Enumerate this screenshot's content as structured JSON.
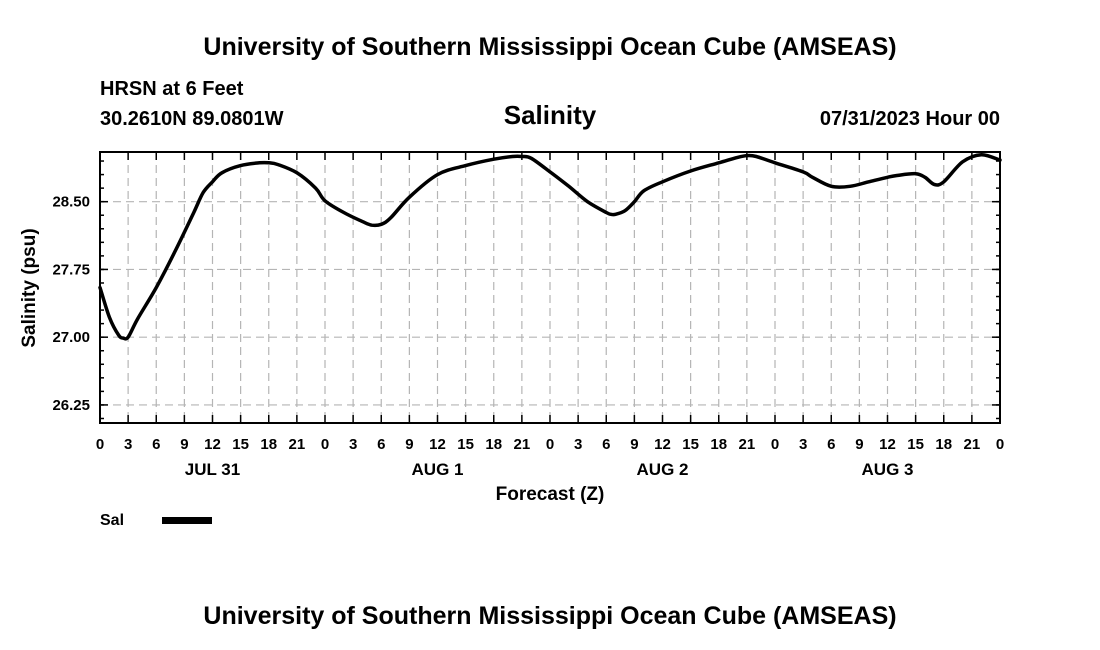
{
  "header": {
    "title": "University of Southern Mississippi Ocean Cube (AMSEAS)",
    "station": "HRSN at 6 Feet",
    "coords": "30.2610N  89.0801W",
    "valid_time": "07/31/2023 Hour 00"
  },
  "footer": {
    "title": "University of Southern Mississippi Ocean Cube (AMSEAS)"
  },
  "legend": {
    "label": "Sal",
    "color": "#000000"
  },
  "chart_data": {
    "type": "line",
    "title": "Salinity",
    "xlabel": "Forecast (Z)",
    "ylabel": "Salinity (psu)",
    "xlim": [
      0,
      96
    ],
    "ylim": [
      26.05,
      29.05
    ],
    "grid": true,
    "yticks": [
      26.25,
      27.0,
      27.75,
      28.5
    ],
    "ytick_labels": [
      "26.25",
      "27.00",
      "27.75",
      "28.50"
    ],
    "xticks": [
      0,
      3,
      6,
      9,
      12,
      15,
      18,
      21,
      24,
      27,
      30,
      33,
      36,
      39,
      42,
      45,
      48,
      51,
      54,
      57,
      60,
      63,
      66,
      69,
      72,
      75,
      78,
      81,
      84,
      87,
      90,
      93,
      96
    ],
    "xtick_labels": [
      "0",
      "3",
      "6",
      "9",
      "12",
      "15",
      "18",
      "21",
      "0",
      "3",
      "6",
      "9",
      "12",
      "15",
      "18",
      "21",
      "0",
      "3",
      "6",
      "9",
      "12",
      "15",
      "18",
      "21",
      "0",
      "3",
      "6",
      "9",
      "12",
      "15",
      "18",
      "21",
      "0"
    ],
    "day_labels": [
      {
        "x": 12,
        "label": "JUL 31"
      },
      {
        "x": 36,
        "label": "AUG 1"
      },
      {
        "x": 60,
        "label": "AUG 2"
      },
      {
        "x": 84,
        "label": "AUG 3"
      }
    ],
    "series": [
      {
        "name": "Sal",
        "x": [
          0,
          1,
          2,
          2.5,
          3,
          4,
          6,
          8,
          10,
          11,
          12,
          13,
          15,
          17,
          18,
          19,
          21,
          23,
          24,
          26,
          28,
          29,
          30,
          31,
          33,
          36,
          39,
          42,
          44,
          45,
          46,
          48,
          50,
          52,
          54,
          54.5,
          55,
          56,
          57,
          58,
          60,
          63,
          66,
          68,
          69,
          70,
          72,
          75,
          76,
          78,
          80,
          82,
          84,
          85,
          87,
          88,
          89,
          90,
          92,
          94,
          96
        ],
        "y": [
          27.55,
          27.22,
          27.02,
          26.99,
          27.0,
          27.2,
          27.55,
          27.95,
          28.38,
          28.6,
          28.72,
          28.82,
          28.9,
          28.93,
          28.93,
          28.91,
          28.82,
          28.65,
          28.51,
          28.38,
          28.28,
          28.24,
          28.25,
          28.32,
          28.55,
          28.8,
          28.9,
          28.97,
          29.0,
          29.0,
          28.98,
          28.83,
          28.67,
          28.5,
          28.38,
          28.36,
          28.36,
          28.4,
          28.5,
          28.62,
          28.72,
          28.84,
          28.93,
          28.99,
          29.01,
          29.0,
          28.93,
          28.83,
          28.77,
          28.67,
          28.67,
          28.72,
          28.77,
          28.79,
          28.81,
          28.77,
          28.69,
          28.72,
          28.94,
          29.02,
          28.96
        ]
      }
    ]
  }
}
